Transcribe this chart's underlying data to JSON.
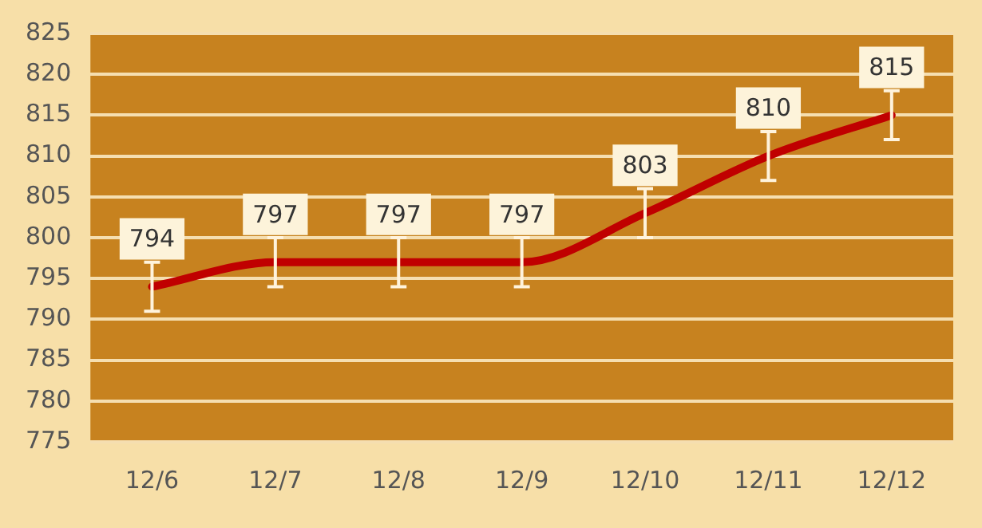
{
  "chart_data": {
    "type": "line",
    "categories": [
      "12/6",
      "12/7",
      "12/8",
      "12/9",
      "12/10",
      "12/11",
      "12/12"
    ],
    "series": [
      {
        "color": "#c00000",
        "values": [
          794,
          797,
          797,
          797,
          803,
          810,
          815
        ],
        "errors": [
          3,
          3,
          3,
          3,
          3,
          3,
          3
        ]
      }
    ],
    "ylim": [
      775,
      825
    ],
    "yticks": [
      775,
      780,
      785,
      790,
      795,
      800,
      805,
      810,
      815,
      820,
      825
    ],
    "grid": "y",
    "legend": false,
    "data_labels": true,
    "marker": "none"
  }
}
